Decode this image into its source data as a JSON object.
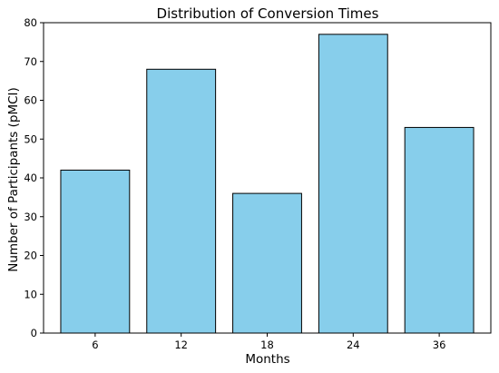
{
  "chart_data": {
    "type": "bar",
    "title": "Distribution of Conversion Times",
    "xlabel": "Months",
    "ylabel": "Number of Participants (pMCI)",
    "categories": [
      "6",
      "12",
      "18",
      "24",
      "36"
    ],
    "values": [
      42,
      68,
      36,
      77,
      53
    ],
    "ylim": [
      0,
      80
    ],
    "yticks": [
      0,
      10,
      20,
      30,
      40,
      50,
      60,
      70,
      80
    ],
    "grid": false,
    "legend": "none",
    "bar_color": "#87ceeb",
    "bar_edge_color": "#000000"
  }
}
